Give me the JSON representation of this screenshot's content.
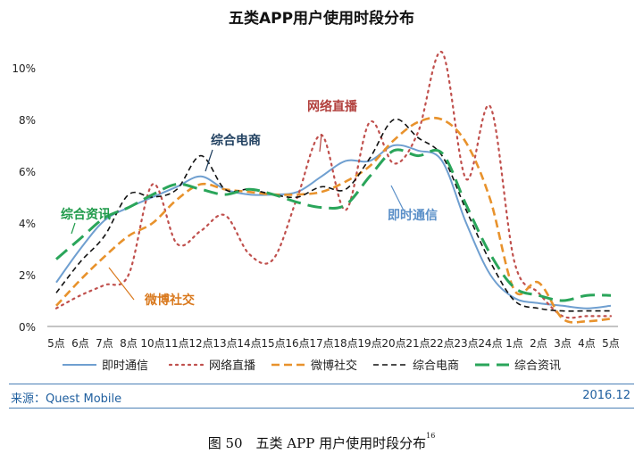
{
  "chart_data": {
    "type": "line",
    "title": "五类APP用户使用时段分布",
    "categories": [
      "5点",
      "6点",
      "7点",
      "8点",
      "10点",
      "11点",
      "12点",
      "13点",
      "14点",
      "15点",
      "16点",
      "17点",
      "18点",
      "19点",
      "20点",
      "21点",
      "22点",
      "23点",
      "24点",
      "1点",
      "2点",
      "3点",
      "4点",
      "5点"
    ],
    "ylim": [
      0,
      10
    ],
    "yticks": [
      "0%",
      "2%",
      "4%",
      "6%",
      "8%",
      "10%"
    ],
    "ytick_values": [
      0,
      2,
      4,
      6,
      8,
      10
    ],
    "series": [
      {
        "name": "即时通信",
        "color": "#6f9fd0",
        "dash": "solid",
        "values": [
          1.7,
          3.0,
          4.1,
          4.6,
          5.0,
          5.4,
          5.8,
          5.3,
          5.1,
          5.1,
          5.2,
          5.8,
          6.4,
          6.4,
          7.0,
          6.8,
          6.4,
          4.0,
          2.0,
          1.1,
          0.9,
          0.8,
          0.7,
          0.8
        ]
      },
      {
        "name": "网络直播",
        "color": "#c0504d",
        "dash": "dotted",
        "values": [
          0.7,
          1.2,
          1.6,
          2.0,
          5.5,
          3.2,
          3.7,
          4.3,
          2.8,
          2.6,
          5.0,
          7.4,
          4.5,
          7.9,
          6.3,
          7.5,
          10.6,
          5.7,
          8.5,
          2.5,
          1.3,
          0.4,
          0.4,
          0.4
        ]
      },
      {
        "name": "微博社交",
        "color": "#e8922c",
        "dash": "dash",
        "values": [
          0.8,
          1.8,
          2.7,
          3.5,
          4.0,
          4.9,
          5.5,
          5.3,
          5.2,
          5.1,
          5.1,
          5.2,
          5.6,
          6.2,
          7.2,
          7.9,
          8.0,
          7.1,
          4.9,
          1.4,
          1.7,
          0.3,
          0.2,
          0.3
        ]
      },
      {
        "name": "综合电商",
        "color": "#111111",
        "dash": "smalldash",
        "values": [
          1.3,
          2.5,
          3.5,
          5.1,
          5.0,
          5.3,
          6.6,
          5.3,
          5.3,
          5.1,
          5.0,
          5.4,
          5.3,
          6.5,
          8.0,
          7.3,
          6.6,
          4.5,
          2.5,
          1.0,
          0.7,
          0.6,
          0.6,
          0.6
        ]
      },
      {
        "name": "综合资讯",
        "color": "#2aa55a",
        "dash": "longdash",
        "values": [
          2.6,
          3.4,
          4.2,
          4.6,
          5.1,
          5.5,
          5.3,
          5.1,
          5.3,
          5.1,
          4.8,
          4.6,
          4.7,
          5.8,
          6.8,
          6.6,
          6.7,
          4.7,
          2.8,
          1.5,
          1.2,
          1.0,
          1.2,
          1.2
        ]
      }
    ],
    "annotations": [
      {
        "text": "网络直播",
        "series": 1,
        "color": "#b2403d"
      },
      {
        "text": "综合电商",
        "series": 3,
        "color": "#1f3f5f"
      },
      {
        "text": "即时通信",
        "series": 0,
        "color": "#5a8fc8"
      },
      {
        "text": "综合资讯",
        "series": 4,
        "color": "#1f9a4a"
      },
      {
        "text": "微博社交",
        "series": 2,
        "color": "#d9781c"
      }
    ],
    "grid": false,
    "legend": "bottom"
  },
  "footer": {
    "source": "来源：Quest Mobile",
    "date": "2016.12"
  },
  "caption": {
    "text": "图 50　五类 APP 用户使用时段分布",
    "footnote": "16"
  }
}
